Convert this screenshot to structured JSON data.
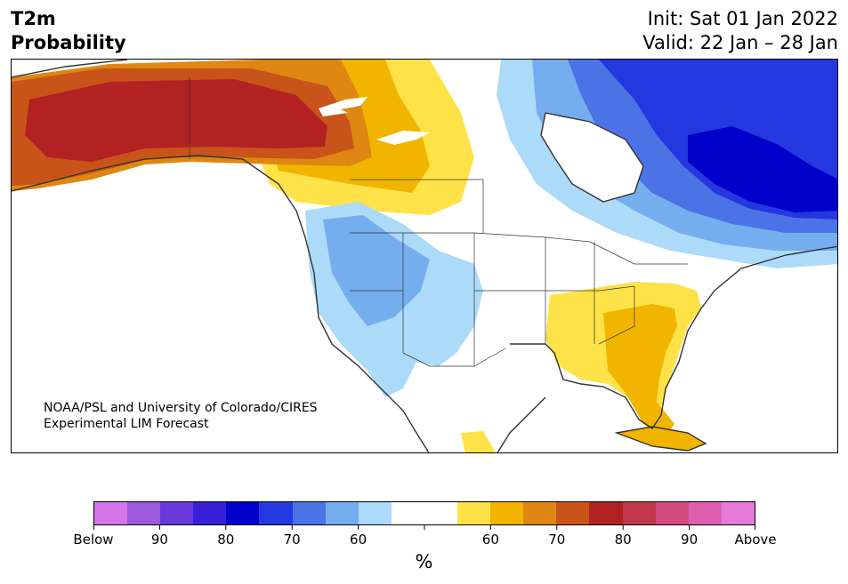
{
  "header": {
    "title_line1": "T2m",
    "title_line2": "Probability",
    "init": "Init: Sat 01 Jan 2022",
    "valid": "Valid: 22 Jan – 28 Jan"
  },
  "credit": {
    "line1": "NOAA/PSL and University of Colorado/CIRES",
    "line2": "Experimental LIM Forecast"
  },
  "map": {
    "region": "North America",
    "fields": {
      "above_normal": [
        "Alaska",
        "Yukon",
        "southern Northwest Territories",
        "northern Alberta",
        "Saskatchewan",
        "southeastern United States",
        "Mid-Atlantic",
        "Florida",
        "Cuba"
      ],
      "below_normal": [
        "northeastern Canada",
        "Quebec",
        "Labrador",
        "Baffin Island",
        "Hudson Bay region",
        "US Pacific Northwest",
        "Great Basin",
        "northern Rockies"
      ]
    }
  },
  "colorbar": {
    "colors": [
      "#d675e8",
      "#9b59dd",
      "#6a38da",
      "#3a1fd9",
      "#0000cc",
      "#2537de",
      "#4b73e6",
      "#75aeef",
      "#acdaf9",
      "#ffffff",
      "#ffffff",
      "#fee247",
      "#f1b500",
      "#de8712",
      "#c9541a",
      "#b22222",
      "#c2364a",
      "#d04d7e",
      "#dc5fb0",
      "#e67ad9"
    ],
    "labels": [
      "Below",
      "90",
      "80",
      "70",
      "60",
      "",
      "60",
      "70",
      "80",
      "90",
      "Above"
    ],
    "unit": "%"
  }
}
